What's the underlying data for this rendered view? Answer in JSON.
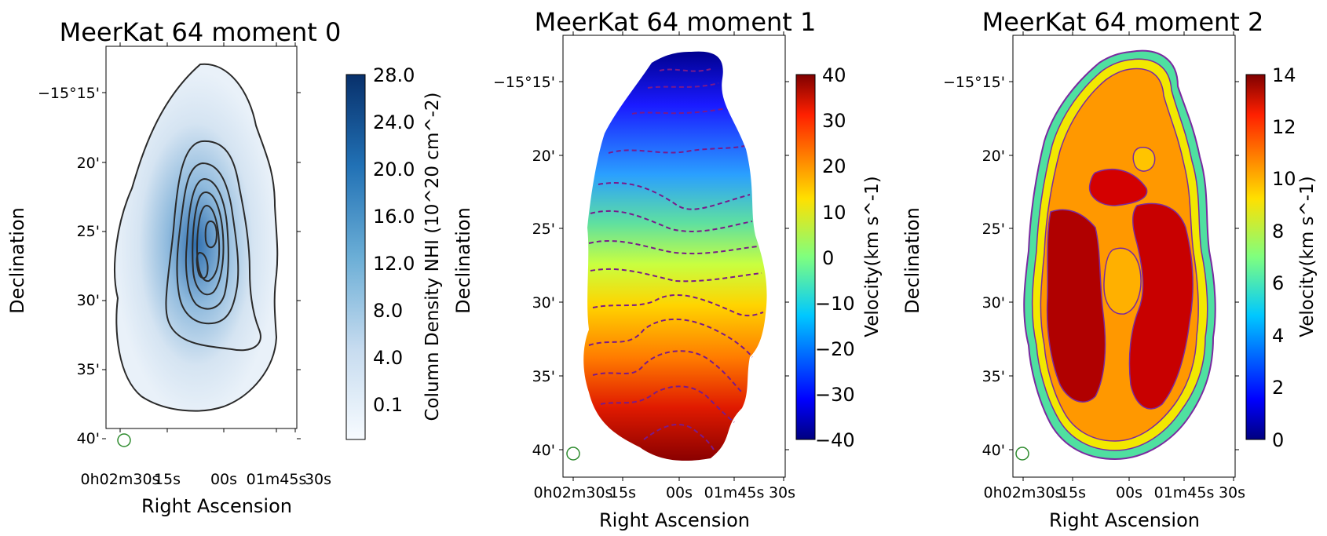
{
  "chart_data": [
    {
      "type": "heatmap",
      "title": "MeerKat 64 moment 0",
      "xlabel": "Right Ascension",
      "ylabel": "Declination",
      "x_tick_labels": [
        "0h02m30s",
        "15s",
        "00s",
        "01m45s",
        "30s"
      ],
      "y_tick_labels": [
        "−15°15'",
        "20'",
        "25'",
        "30'",
        "35'",
        "40'"
      ],
      "colorbar": {
        "label": "Column Density NHI (10^20 cm^-2)",
        "ticks": [
          "0.1",
          "4.0",
          "8.0",
          "12.0",
          "16.0",
          "20.0",
          "24.0",
          "28.0"
        ],
        "colormap": "Blues"
      },
      "contours": "solid dark grey",
      "beam_color": "#2e8b2e"
    },
    {
      "type": "heatmap",
      "title": "MeerKat 64 moment 1",
      "xlabel": "Right Ascension",
      "ylabel": "Declination",
      "x_tick_labels": [
        "0h02m30s",
        "15s",
        "00s",
        "01m45s",
        "30s"
      ],
      "y_tick_labels": [
        "−15°15'",
        "20'",
        "25'",
        "30'",
        "35'",
        "40'"
      ],
      "colorbar": {
        "label": "Velocity(km s^-1)",
        "ticks": [
          "−40",
          "−30",
          "−20",
          "−10",
          "0",
          "10",
          "20",
          "30",
          "40"
        ],
        "range": [
          -40,
          40
        ],
        "colormap": "jet"
      },
      "contours": "dashed purple",
      "beam_color": "#2e8b2e"
    },
    {
      "type": "heatmap",
      "title": "MeerKat 64  moment 2",
      "xlabel": "Right Ascension",
      "ylabel": "Declination",
      "x_tick_labels": [
        "0h02m30s",
        "15s",
        "00s",
        "01m45s",
        "30s"
      ],
      "y_tick_labels": [
        "−15°15'",
        "20'",
        "25'",
        "30'",
        "35'",
        "40'"
      ],
      "colorbar": {
        "label": "Velocity(km s^-1)",
        "ticks": [
          "0",
          "2",
          "4",
          "6",
          "8",
          "10",
          "12",
          "14"
        ],
        "range": [
          0,
          14
        ],
        "colormap": "jet"
      },
      "contours": "solid purple",
      "beam_color": "#2e8b2e"
    }
  ]
}
